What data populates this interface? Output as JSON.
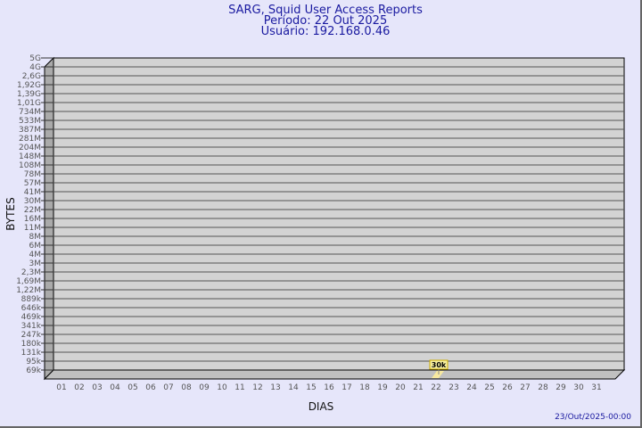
{
  "chart_data": {
    "type": "bar",
    "title": [
      "SARG, Squid User Access Reports",
      "Período: 22 Out 2025",
      "Usuário: 192.168.0.46"
    ],
    "xlabel": "DIAS",
    "ylabel": "BYTES",
    "y_scale": "log",
    "y_tick_labels": [
      "5G",
      "4G",
      "2,6G",
      "1,92G",
      "1,39G",
      "1,01G",
      "734M",
      "533M",
      "387M",
      "281M",
      "204M",
      "148M",
      "108M",
      "78M",
      "57M",
      "41M",
      "30M",
      "22M",
      "16M",
      "11M",
      "8M",
      "6M",
      "4M",
      "3M",
      "2,3M",
      "1,69M",
      "1,22M",
      "889k",
      "646k",
      "469k",
      "341k",
      "247k",
      "180k",
      "131k",
      "95k",
      "69k"
    ],
    "categories": [
      "01",
      "02",
      "03",
      "04",
      "05",
      "06",
      "07",
      "08",
      "09",
      "10",
      "11",
      "12",
      "13",
      "14",
      "15",
      "16",
      "17",
      "18",
      "19",
      "20",
      "21",
      "22",
      "23",
      "24",
      "25",
      "26",
      "27",
      "28",
      "29",
      "30",
      "31"
    ],
    "bars": [
      {
        "category": "22",
        "value": 30000,
        "label": "30k"
      }
    ],
    "grid": true,
    "colors": {
      "background": "#e6e6fa",
      "plot": "#d3d3d3",
      "bar": "#f7e9a0",
      "label_bg": "#f7f0a0",
      "title": "#1a1aa0"
    },
    "footer": "23/Out/2025-00:00"
  }
}
